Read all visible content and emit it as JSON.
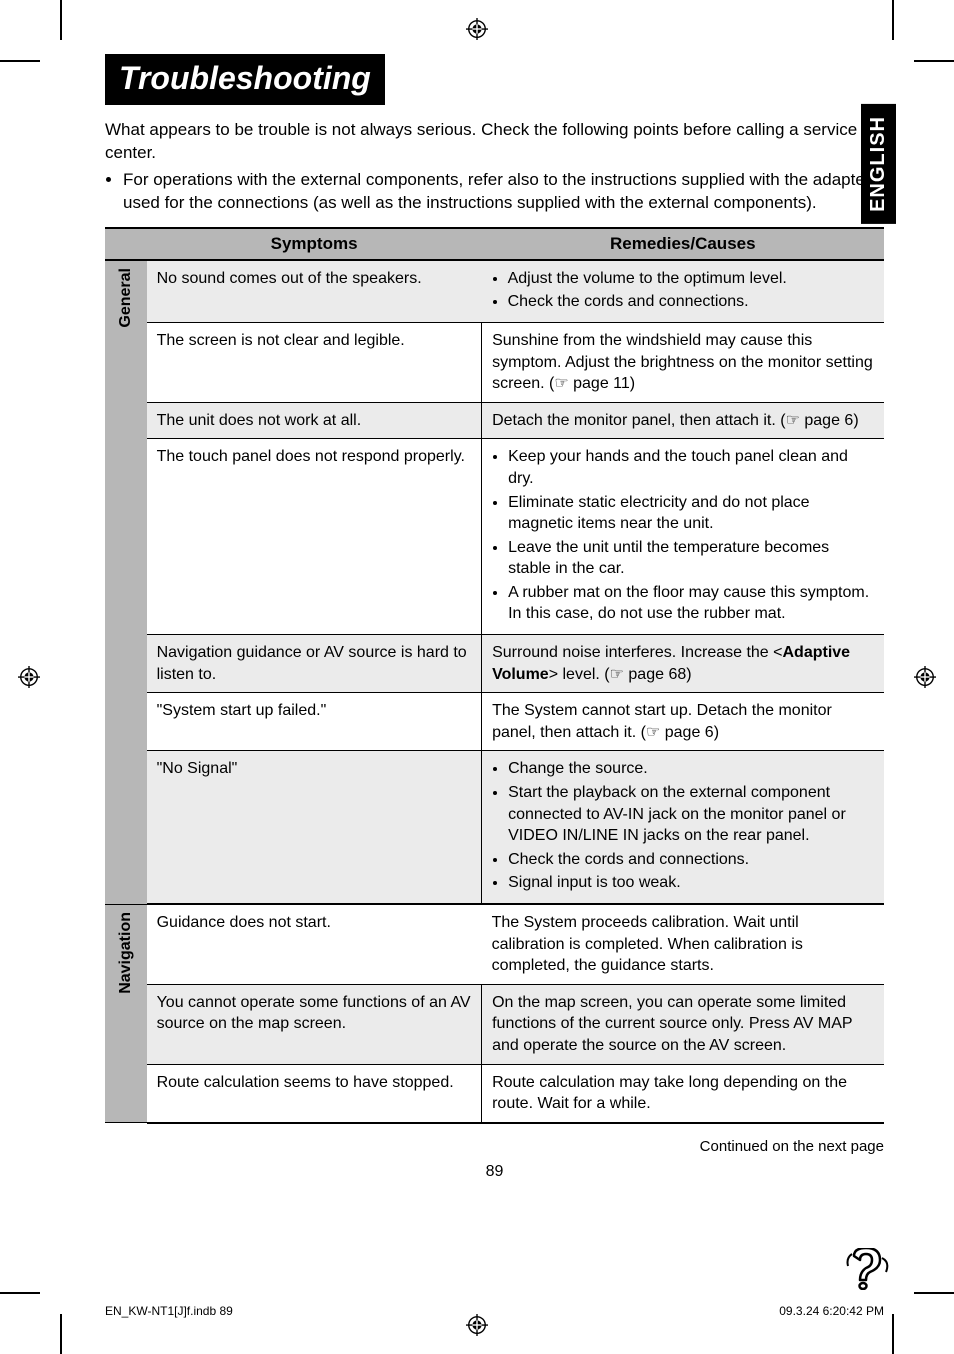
{
  "page": {
    "title": "Troubleshooting",
    "language_tab": "ENGLISH",
    "intro_line": "What appears to be trouble is not always serious. Check the following points before calling a service center.",
    "intro_bullet": "For operations with the external components, refer also to the instructions supplied with the adapters used for the connections (as well as the instructions supplied with the external components).",
    "continued": "Continued on the next page",
    "page_number": "89",
    "footer_left": "EN_KW-NT1[J]f.indb   89",
    "footer_right": "09.3.24   6:20:42 PM"
  },
  "table": {
    "header_symptoms": "Symptoms",
    "header_remedies": "Remedies/Causes",
    "sections": [
      {
        "label": "General",
        "rows": [
          {
            "symptom": "No sound comes out of the speakers.",
            "remedy_list": [
              "Adjust the volume to the optimum level.",
              "Check the cords and connections."
            ],
            "shaded": true
          },
          {
            "symptom": "The screen is not clear and legible.",
            "remedy_text": "Sunshine from the windshield may cause this symptom. Adjust the brightness on the monitor setting screen. (☞ page 11)"
          },
          {
            "symptom": "The unit does not work at all.",
            "remedy_text": "Detach the monitor panel, then attach it. (☞ page 6)",
            "shaded": true
          },
          {
            "symptom": "The touch panel does not respond properly.",
            "remedy_list": [
              "Keep your hands and the touch panel clean and dry.",
              "Eliminate static electricity and do not place magnetic items near the unit.",
              "Leave the unit until the temperature becomes stable in the car.",
              "A rubber mat on the floor may cause this symptom. In this case, do not use the rubber mat."
            ]
          },
          {
            "symptom": "Navigation guidance or AV source is hard to listen to.",
            "remedy_html": "Surround noise interferes. Increase the &lt;<b>Adaptive Volume</b>&gt; level. (☞ page 68)",
            "shaded": true
          },
          {
            "symptom": "\"System start up failed.\"",
            "remedy_text": "The System cannot start up. Detach the monitor panel, then attach it. (☞ page 6)"
          },
          {
            "symptom": "\"No Signal\"",
            "remedy_list": [
              "Change the source.",
              "Start the playback on the external component connected to AV-IN jack on the monitor panel or VIDEO IN/LINE IN jacks on the rear panel.",
              "Check the cords and connections.",
              "Signal input is too weak."
            ],
            "shaded": true
          }
        ]
      },
      {
        "label": "Navigation",
        "rows": [
          {
            "symptom": "Guidance does not start.",
            "remedy_text": "The System proceeds calibration. Wait until calibration is completed. When calibration is completed, the guidance starts."
          },
          {
            "symptom": "You cannot operate some functions of an AV source on the map screen.",
            "remedy_text": "On the map screen, you can operate some limited functions of the current source only. Press AV MAP and operate the source on the AV screen.",
            "shaded": true
          },
          {
            "symptom": "Route calculation seems to have stopped.",
            "remedy_text": "Route calculation may take long depending on the route. Wait for a while."
          }
        ]
      }
    ]
  }
}
